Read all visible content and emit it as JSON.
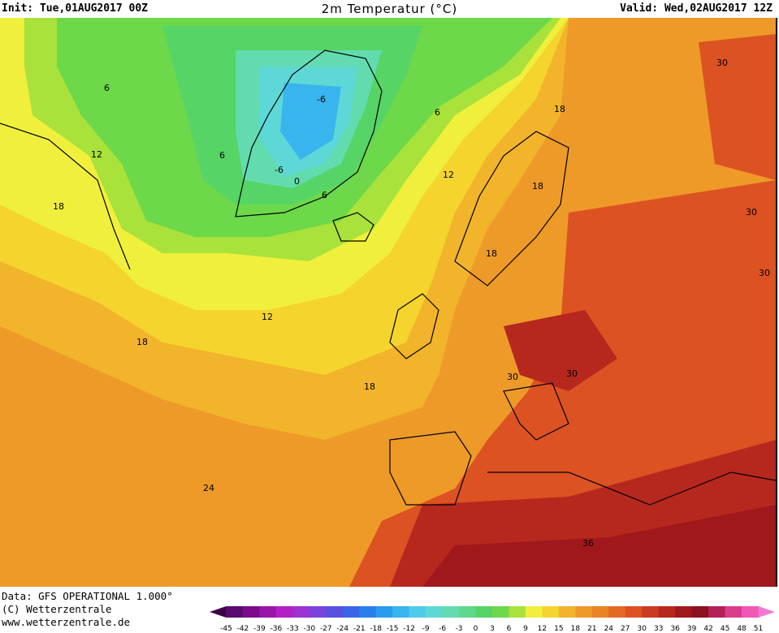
{
  "header": {
    "init": "Init: Tue,01AUG2017 00Z",
    "title": "2m Temperatur (°C)",
    "valid": "Valid: Wed,02AUG2017 12Z"
  },
  "footer": {
    "data_line": "Data: GFS OPERATIONAL 1.000°",
    "copyright_line": "(C) Wetterzentrale",
    "url_line": "www.wetterzentrale.de"
  },
  "legend": {
    "ticks": [
      "-45",
      "-42",
      "-39",
      "-36",
      "-33",
      "-30",
      "-27",
      "-24",
      "-21",
      "-18",
      "-15",
      "-12",
      "-9",
      "-6",
      "-3",
      "0",
      "3",
      "6",
      "9",
      "12",
      "15",
      "18",
      "21",
      "24",
      "27",
      "30",
      "33",
      "36",
      "39",
      "42",
      "45",
      "48",
      "51"
    ],
    "colors": [
      "#3c0046",
      "#5a0a6e",
      "#7a0c8c",
      "#9a14aa",
      "#b41ec6",
      "#9c32d2",
      "#7a44da",
      "#5a50e0",
      "#3c64e6",
      "#2a80ea",
      "#2a9aec",
      "#38b4ee",
      "#50caea",
      "#5ed8d6",
      "#62dcae",
      "#5ed88a",
      "#56d466",
      "#6cd84a",
      "#a8e23a",
      "#f0f03c",
      "#f5d42e",
      "#f2b42a",
      "#ee9a28",
      "#ea8226",
      "#e46a24",
      "#dc5222",
      "#cc3a20",
      "#b6281e",
      "#a0181c",
      "#8c1020",
      "#b4205a",
      "#dc3c8c",
      "#f058b4",
      "#f078d2"
    ]
  },
  "map": {
    "contour_labels": [
      "6",
      "-6",
      "6",
      "-6",
      "0",
      "12",
      "6",
      "6",
      "12",
      "18",
      "18",
      "18",
      "12",
      "18",
      "18",
      "18",
      "30",
      "30",
      "30",
      "30",
      "30",
      "36",
      "24"
    ]
  }
}
